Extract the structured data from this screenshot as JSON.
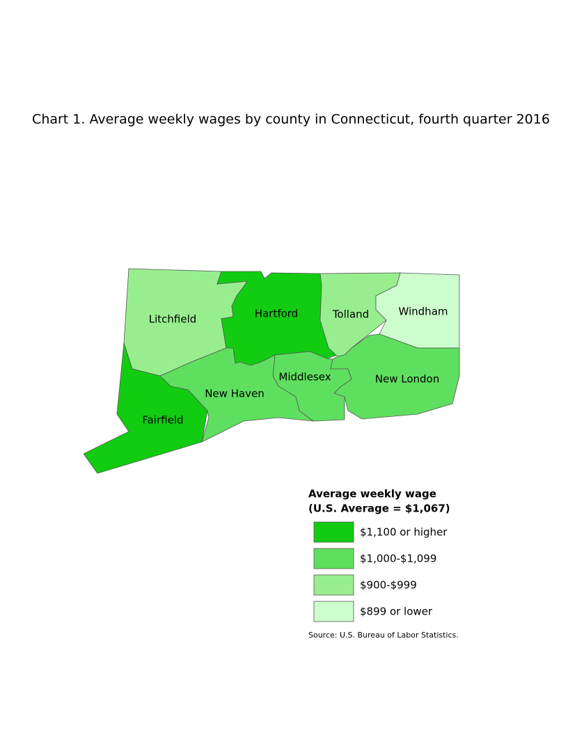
{
  "title": "Chart 1. Average weekly wages by county in Connecticut, fourth quarter 2016",
  "counties": [
    {
      "name": "Litchfield",
      "color": "#98ee8f"
    },
    {
      "name": "Hartford",
      "color": "#11cc11"
    },
    {
      "name": "Tolland",
      "color": "#98ee8f"
    },
    {
      "name": "Windham",
      "color": "#cdfccd"
    },
    {
      "name": "New London",
      "color": "#5fdf5f"
    },
    {
      "name": "Middlesex",
      "color": "#5fdf5f"
    },
    {
      "name": "New Haven",
      "color": "#5fdf5f"
    },
    {
      "name": "Fairfield",
      "color": "#11cc11"
    }
  ],
  "legend": {
    "title": [
      "Average weekly wage",
      "(U.S. Average = $1,067)"
    ],
    "items": [
      {
        "label": "$1,100 or higher",
        "color": "#11cc11"
      },
      {
        "label": "$1,000-$1,099",
        "color": "#5fdf5f"
      },
      {
        "label": "$900-$999",
        "color": "#98ee8f"
      },
      {
        "label": "$899 or lower",
        "color": "#cdfccd"
      }
    ]
  },
  "source": "Source: U.S. Bureau of Labor Statistics."
}
